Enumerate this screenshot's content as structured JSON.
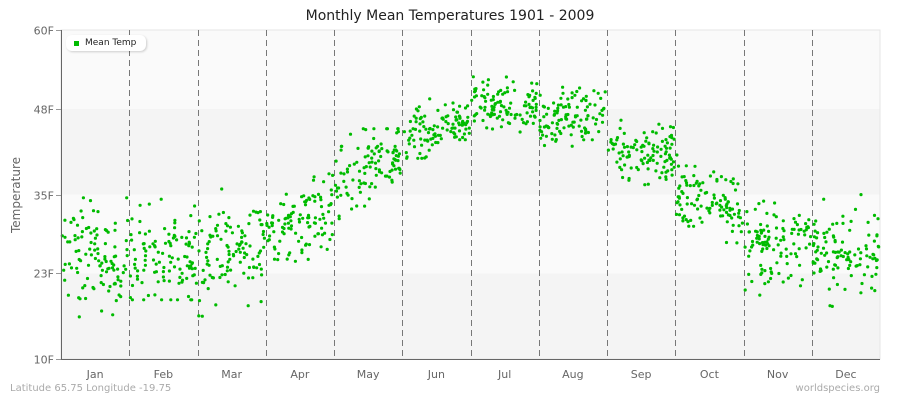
{
  "title": "Monthly Mean Temperatures 1901 - 2009",
  "footer": {
    "location": "Latitude 65.75 Longitude -19.75",
    "source": "worldspecies.org"
  },
  "colors": {
    "point": "#00bb00",
    "band_light": "#fafafa",
    "band_dark": "#f4f4f4",
    "axis": "#666666",
    "divider": "#777777"
  },
  "chart_data": {
    "type": "scatter",
    "title": "Monthly Mean Temperatures 1901 - 2009",
    "xlabel": "",
    "ylabel": "Temperature",
    "ylim": [
      10,
      60
    ],
    "yticks": [
      {
        "value": 10,
        "label": "10F"
      },
      {
        "value": 23,
        "label": "23F"
      },
      {
        "value": 35,
        "label": "35F"
      },
      {
        "value": 48,
        "label": "48F"
      },
      {
        "value": 60,
        "label": "60F"
      }
    ],
    "categories": [
      "Jan",
      "Feb",
      "Mar",
      "Apr",
      "May",
      "Jun",
      "Jul",
      "Aug",
      "Sep",
      "Oct",
      "Nov",
      "Dec"
    ],
    "legend": [
      {
        "name": "Mean Temp",
        "color": "#00bb00"
      }
    ],
    "legend_position": "top-left",
    "grid": {
      "horizontal_bands": true,
      "vertical_dashed_month_dividers": true
    },
    "years": [
      1901,
      2009
    ],
    "points_per_month": 109,
    "series": [
      {
        "name": "Mean Temp",
        "monthly_summary": [
          {
            "month": "Jan",
            "mean": 25.5,
            "min": 16.0,
            "max": 34.5,
            "spread": 4.0,
            "trend": 0.0
          },
          {
            "month": "Feb",
            "mean": 25.5,
            "min": 19.0,
            "max": 37.0,
            "spread": 3.8,
            "trend": 0.0
          },
          {
            "month": "Mar",
            "mean": 26.5,
            "min": 16.5,
            "max": 37.5,
            "spread": 3.8,
            "trend": 4.0
          },
          {
            "month": "Apr",
            "mean": 31.0,
            "min": 23.0,
            "max": 40.0,
            "spread": 3.0,
            "trend": 4.0
          },
          {
            "month": "May",
            "mean": 38.5,
            "min": 31.0,
            "max": 45.0,
            "spread": 3.0,
            "trend": 6.0
          },
          {
            "month": "Jun",
            "mean": 45.0,
            "min": 40.5,
            "max": 50.0,
            "spread": 2.0,
            "trend": 4.0
          },
          {
            "month": "Jul",
            "mean": 48.5,
            "min": 44.5,
            "max": 53.0,
            "spread": 1.8,
            "trend": 0.0
          },
          {
            "month": "Aug",
            "mean": 47.0,
            "min": 42.0,
            "max": 52.0,
            "spread": 2.0,
            "trend": 1.0
          },
          {
            "month": "Sep",
            "mean": 41.5,
            "min": 36.0,
            "max": 47.0,
            "spread": 2.5,
            "trend": 0.0
          },
          {
            "month": "Oct",
            "mean": 34.0,
            "min": 26.0,
            "max": 41.0,
            "spread": 2.8,
            "trend": -2.0
          },
          {
            "month": "Nov",
            "mean": 27.5,
            "min": 19.5,
            "max": 34.0,
            "spread": 3.0,
            "trend": 0.0
          },
          {
            "month": "Dec",
            "mean": 26.0,
            "min": 18.0,
            "max": 35.0,
            "spread": 3.3,
            "trend": 0.0
          }
        ]
      }
    ]
  }
}
